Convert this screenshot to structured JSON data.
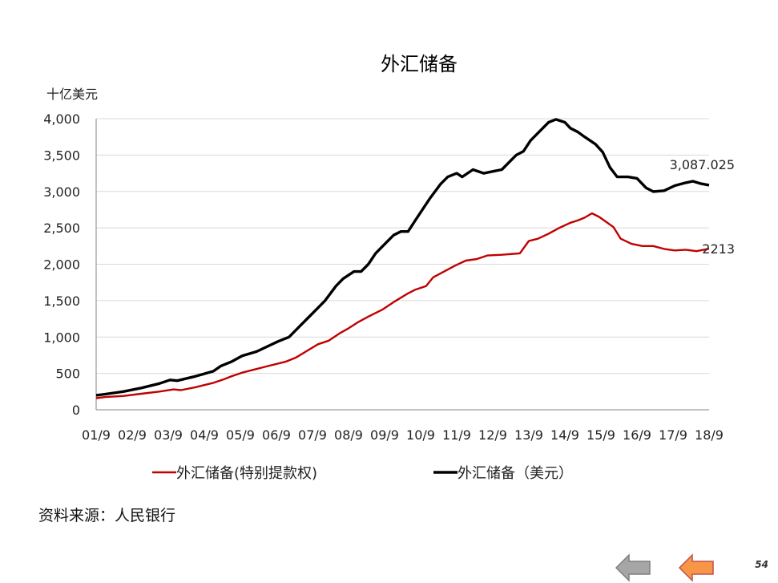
{
  "chart_data": {
    "type": "line",
    "title": "外汇储备",
    "ylabel": "十亿美元",
    "xlabel": "",
    "ylim": [
      0,
      4000
    ],
    "yticks": [
      0,
      500,
      1000,
      1500,
      2000,
      2500,
      3000,
      3500,
      4000
    ],
    "ytick_labels": [
      "0",
      "500",
      "1,000",
      "1,500",
      "2,000",
      "2,500",
      "3,000",
      "3,500",
      "4,000"
    ],
    "xlim": [
      2001.75,
      2018.75
    ],
    "categories": [
      "01/9",
      "02/9",
      "03/9",
      "04/9",
      "05/9",
      "06/9",
      "07/9",
      "08/9",
      "09/9",
      "10/9",
      "11/9",
      "12/9",
      "13/9",
      "14/9",
      "15/9",
      "16/9",
      "17/9",
      "18/9"
    ],
    "grid": true,
    "legend_position": "bottom",
    "series": [
      {
        "name": "外汇储备(特别提款权)",
        "color": "#c00000",
        "end_label": "2213",
        "points": [
          [
            2001.75,
            160
          ],
          [
            2002.0,
            175
          ],
          [
            2002.5,
            190
          ],
          [
            2003.0,
            220
          ],
          [
            2003.5,
            250
          ],
          [
            2003.9,
            280
          ],
          [
            2004.1,
            270
          ],
          [
            2004.5,
            310
          ],
          [
            2005.0,
            370
          ],
          [
            2005.3,
            420
          ],
          [
            2005.5,
            460
          ],
          [
            2005.8,
            510
          ],
          [
            2006.5,
            600
          ],
          [
            2007.0,
            660
          ],
          [
            2007.3,
            720
          ],
          [
            2007.6,
            810
          ],
          [
            2007.9,
            900
          ],
          [
            2008.2,
            950
          ],
          [
            2008.5,
            1050
          ],
          [
            2008.75,
            1120
          ],
          [
            2009.0,
            1200
          ],
          [
            2009.3,
            1280
          ],
          [
            2009.7,
            1380
          ],
          [
            2010.0,
            1480
          ],
          [
            2010.4,
            1600
          ],
          [
            2010.6,
            1650
          ],
          [
            2010.9,
            1700
          ],
          [
            2011.1,
            1820
          ],
          [
            2011.4,
            1900
          ],
          [
            2011.7,
            1980
          ],
          [
            2012.0,
            2050
          ],
          [
            2012.3,
            2070
          ],
          [
            2012.6,
            2120
          ],
          [
            2013.0,
            2130
          ],
          [
            2013.5,
            2150
          ],
          [
            2013.75,
            2320
          ],
          [
            2014.0,
            2350
          ],
          [
            2014.3,
            2420
          ],
          [
            2014.6,
            2500
          ],
          [
            2014.9,
            2570
          ],
          [
            2015.1,
            2600
          ],
          [
            2015.3,
            2640
          ],
          [
            2015.5,
            2700
          ],
          [
            2015.7,
            2650
          ],
          [
            2015.9,
            2580
          ],
          [
            2016.1,
            2510
          ],
          [
            2016.3,
            2350
          ],
          [
            2016.6,
            2280
          ],
          [
            2016.9,
            2250
          ],
          [
            2017.2,
            2250
          ],
          [
            2017.5,
            2210
          ],
          [
            2017.8,
            2190
          ],
          [
            2018.1,
            2200
          ],
          [
            2018.4,
            2180
          ],
          [
            2018.6,
            2200
          ],
          [
            2018.75,
            2213
          ]
        ]
      },
      {
        "name": "外汇储备（美元）",
        "color": "#000000",
        "end_label": "3,087.025",
        "points": [
          [
            2001.75,
            200
          ],
          [
            2002.0,
            215
          ],
          [
            2002.5,
            250
          ],
          [
            2003.0,
            300
          ],
          [
            2003.5,
            360
          ],
          [
            2003.8,
            410
          ],
          [
            2004.0,
            400
          ],
          [
            2004.5,
            460
          ],
          [
            2005.0,
            530
          ],
          [
            2005.2,
            600
          ],
          [
            2005.5,
            660
          ],
          [
            2005.8,
            740
          ],
          [
            2006.2,
            800
          ],
          [
            2006.5,
            870
          ],
          [
            2006.8,
            940
          ],
          [
            2007.1,
            1000
          ],
          [
            2007.4,
            1150
          ],
          [
            2007.7,
            1300
          ],
          [
            2007.9,
            1400
          ],
          [
            2008.1,
            1500
          ],
          [
            2008.4,
            1700
          ],
          [
            2008.6,
            1800
          ],
          [
            2008.9,
            1900
          ],
          [
            2009.1,
            1900
          ],
          [
            2009.3,
            2000
          ],
          [
            2009.5,
            2150
          ],
          [
            2009.8,
            2300
          ],
          [
            2010.0,
            2400
          ],
          [
            2010.2,
            2450
          ],
          [
            2010.4,
            2450
          ],
          [
            2010.6,
            2600
          ],
          [
            2010.8,
            2750
          ],
          [
            2011.0,
            2900
          ],
          [
            2011.3,
            3100
          ],
          [
            2011.5,
            3200
          ],
          [
            2011.75,
            3250
          ],
          [
            2011.9,
            3200
          ],
          [
            2012.2,
            3300
          ],
          [
            2012.5,
            3250
          ],
          [
            2012.8,
            3280
          ],
          [
            2013.0,
            3300
          ],
          [
            2013.2,
            3400
          ],
          [
            2013.4,
            3500
          ],
          [
            2013.6,
            3550
          ],
          [
            2013.8,
            3700
          ],
          [
            2014.1,
            3850
          ],
          [
            2014.3,
            3950
          ],
          [
            2014.5,
            3990
          ],
          [
            2014.75,
            3950
          ],
          [
            2014.9,
            3870
          ],
          [
            2015.1,
            3820
          ],
          [
            2015.3,
            3750
          ],
          [
            2015.6,
            3650
          ],
          [
            2015.8,
            3540
          ],
          [
            2016.0,
            3330
          ],
          [
            2016.2,
            3200
          ],
          [
            2016.5,
            3200
          ],
          [
            2016.75,
            3180
          ],
          [
            2017.0,
            3050
          ],
          [
            2017.2,
            2998
          ],
          [
            2017.5,
            3010
          ],
          [
            2017.8,
            3080
          ],
          [
            2018.1,
            3120
          ],
          [
            2018.3,
            3140
          ],
          [
            2018.5,
            3110
          ],
          [
            2018.75,
            3087
          ]
        ]
      }
    ]
  },
  "source_text": "资料来源：人民银行",
  "page_number": "54",
  "nav": {
    "back_color": "#a6a6a6",
    "forward_color": "#f79646"
  }
}
